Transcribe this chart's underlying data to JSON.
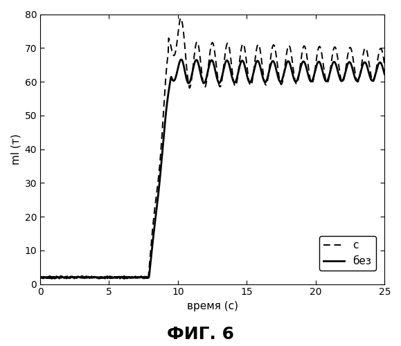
{
  "title": "ФИГ. 6",
  "xlabel": "время (с)",
  "ylabel": "ml (т)",
  "xlim": [
    0,
    25
  ],
  "ylim": [
    0,
    80
  ],
  "xticks": [
    0,
    5,
    10,
    15,
    20,
    25
  ],
  "yticks": [
    0,
    10,
    20,
    30,
    40,
    50,
    60,
    70,
    80
  ],
  "legend_labels": [
    "с",
    "без"
  ],
  "line_color": "#000000",
  "background_color": "#ffffff",
  "fig_background": "#e8e8e8"
}
